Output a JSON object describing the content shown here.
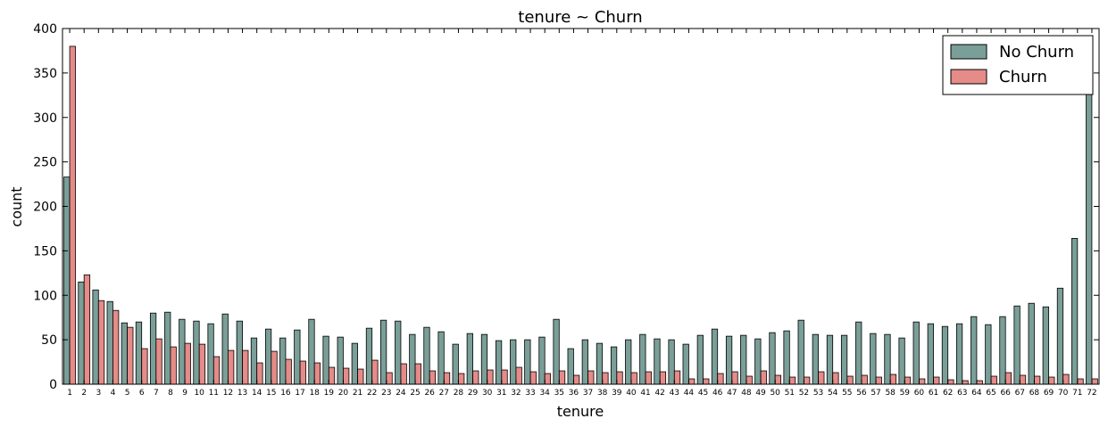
{
  "chart_data": {
    "type": "bar",
    "title": "tenure ~ Churn",
    "xlabel": "tenure",
    "ylabel": "count",
    "ylim": [
      0,
      400
    ],
    "yticks": [
      0,
      50,
      100,
      150,
      200,
      250,
      300,
      350,
      400
    ],
    "grid": false,
    "legend_position": "top-right",
    "categories": [
      "1",
      "2",
      "3",
      "4",
      "5",
      "6",
      "7",
      "8",
      "9",
      "10",
      "11",
      "12",
      "13",
      "14",
      "15",
      "16",
      "17",
      "18",
      "19",
      "20",
      "21",
      "22",
      "23",
      "24",
      "25",
      "26",
      "27",
      "28",
      "29",
      "30",
      "31",
      "32",
      "33",
      "34",
      "35",
      "36",
      "37",
      "38",
      "39",
      "40",
      "41",
      "42",
      "43",
      "44",
      "45",
      "46",
      "47",
      "48",
      "49",
      "50",
      "51",
      "52",
      "53",
      "54",
      "55",
      "56",
      "57",
      "58",
      "59",
      "60",
      "61",
      "62",
      "63",
      "64",
      "65",
      "66",
      "67",
      "68",
      "69",
      "70",
      "71",
      "72"
    ],
    "series": [
      {
        "name": "No Churn",
        "color": "#7a9e98",
        "values": [
          233,
          115,
          106,
          93,
          69,
          70,
          80,
          81,
          73,
          71,
          68,
          79,
          71,
          52,
          62,
          52,
          61,
          73,
          54,
          53,
          46,
          63,
          72,
          71,
          56,
          64,
          59,
          45,
          57,
          56,
          49,
          50,
          50,
          53,
          73,
          40,
          50,
          46,
          42,
          50,
          56,
          51,
          50,
          45,
          55,
          62,
          54,
          55,
          51,
          58,
          60,
          72,
          56,
          55,
          55,
          70,
          57,
          56,
          52,
          70,
          68,
          65,
          68,
          76,
          67,
          76,
          88,
          91,
          87,
          108,
          164,
          355
        ]
      },
      {
        "name": "Churn",
        "color": "#e58b88",
        "values": [
          380,
          123,
          94,
          83,
          64,
          40,
          51,
          42,
          46,
          45,
          31,
          38,
          38,
          24,
          37,
          28,
          26,
          24,
          19,
          18,
          17,
          27,
          13,
          23,
          23,
          15,
          13,
          12,
          15,
          16,
          16,
          19,
          14,
          12,
          15,
          10,
          15,
          13,
          14,
          13,
          14,
          14,
          15,
          6,
          6,
          12,
          14,
          9,
          15,
          10,
          8,
          8,
          14,
          13,
          9,
          10,
          8,
          11,
          8,
          6,
          8,
          5,
          4,
          4,
          9,
          13,
          10,
          9,
          8,
          11,
          6,
          6
        ]
      }
    ]
  }
}
